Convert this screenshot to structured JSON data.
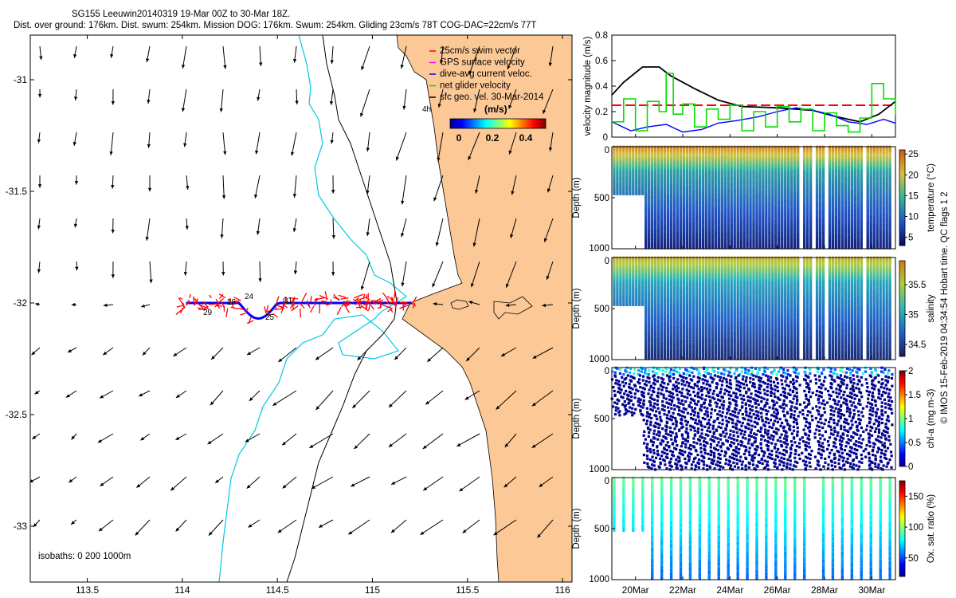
{
  "header": {
    "line1": "SG155 Leeuwin20140319 19-Mar 00Z to 30-Mar 18Z.",
    "line2": "Dist. over ground: 176km. Dist. swum: 254km. Mission DOG: 176km. Swum: 254km. Gliding 23cm/s 78T COG-DAC=22cm/s 77T"
  },
  "colors": {
    "land": "#fcc896",
    "isobath_0": "#000000",
    "isobath_200": "#00c8e6",
    "isobath_1000": "#000000",
    "swim_vector": "#ff0000",
    "gps_surface": "#ff00ff",
    "dive_avg": "#0000ff",
    "net_glider": "#00e000",
    "sfc_geo": "#000000"
  },
  "map": {
    "legend": [
      {
        "label": "25cm/s swim vector",
        "color": "#ff0000"
      },
      {
        "label": "GPS surface velocity",
        "color": "#ff00ff"
      },
      {
        "label": "dive-avg current veloc.",
        "color": "#0000ff"
      },
      {
        "label": "net glider velocity",
        "color": "#00e000"
      },
      {
        "label": "sfc geo. vel. 30-Mar-2014",
        "color": "#000000"
      }
    ],
    "colorbar_title": "(m/s)",
    "colorbar_ticks": [
      "0",
      "0.2",
      "0.4"
    ],
    "isobath_note": "isobaths: 0   200  1000m",
    "day_labels": [
      "29",
      "28",
      "24",
      "25",
      "31",
      "4h"
    ],
    "xlim": [
      113.2,
      116.05
    ],
    "ylim": [
      -33.25,
      -30.8
    ],
    "x_ticks": [
      "113.5",
      "114",
      "114.5",
      "115",
      "115.5",
      "116"
    ],
    "y_ticks": [
      "-31",
      "-31.5",
      "-32",
      "-32.5",
      "-33"
    ]
  },
  "panels": {
    "velocity": {
      "ylabel": "velocity magnitude (m/s)",
      "yticks": [
        "0",
        "0.2",
        "0.4",
        "0.6",
        "0.8"
      ]
    },
    "depth_ylabel": "Depth (m)",
    "depth_ticks": [
      "0",
      "500",
      "1000"
    ],
    "temperature": {
      "cbar_label": "temperature (°C)",
      "cbar_ticks": [
        "5",
        "10",
        "15",
        "20",
        "25"
      ]
    },
    "salinity": {
      "cbar_label": "salinity",
      "cbar_ticks": [
        "34.5",
        "35",
        "35.5"
      ]
    },
    "chla": {
      "cbar_label": "chl-a (mg m-3)",
      "cbar_ticks": [
        "0",
        "0.5",
        "1",
        "1.5",
        "2"
      ]
    },
    "oxygen": {
      "cbar_label": "Ox. sat. ratio (%)",
      "cbar_ticks": [
        "50",
        "100",
        "150"
      ]
    },
    "time_ticks": [
      "20Mar",
      "22Mar",
      "24Mar",
      "26Mar",
      "28Mar",
      "30Mar"
    ]
  },
  "side_note": "© IMOS 15-Feb-2019 04:34:54 Hobart time. QC flags 1  2",
  "chart_data": [
    {
      "type": "line",
      "series": [
        {
          "name": "25cm/s swim vector",
          "x": [
            19.0,
            20.5,
            22,
            24,
            26,
            28,
            29.5,
            31.0
          ],
          "y": [
            0.25,
            0.25,
            0.25,
            0.25,
            0.25,
            0.25,
            0.25,
            0.25
          ]
        },
        {
          "name": "sfc geo. vel. 30-Mar-2014",
          "x": [
            19.0,
            19.5,
            20.3,
            21.0,
            21.5,
            22.5,
            23.5,
            24.5,
            26.0,
            27.5,
            28.5,
            29.5,
            30.3,
            31.0
          ],
          "y": [
            0.33,
            0.43,
            0.55,
            0.55,
            0.48,
            0.38,
            0.29,
            0.24,
            0.23,
            0.21,
            0.16,
            0.12,
            0.18,
            0.28
          ]
        },
        {
          "name": "dive-avg current veloc.",
          "x": [
            19.0,
            19.8,
            20.5,
            21.3,
            22.0,
            22.8,
            23.5,
            24.3,
            25.2,
            26.0,
            26.8,
            27.5,
            28.2,
            29.0,
            29.8,
            30.5,
            31.0
          ],
          "y": [
            0.12,
            0.05,
            0.08,
            0.1,
            0.04,
            0.06,
            0.11,
            0.13,
            0.16,
            0.2,
            0.23,
            0.21,
            0.18,
            0.12,
            0.1,
            0.14,
            0.11
          ]
        },
        {
          "name": "net glider velocity",
          "x": [
            19.0,
            19.5,
            20.0,
            20.5,
            21.0,
            21.3,
            21.6,
            22.0,
            22.5,
            23.0,
            23.5,
            24.0,
            24.5,
            25.0,
            25.5,
            26.0,
            26.5,
            27.0,
            27.5,
            28.0,
            28.5,
            29.0,
            29.5,
            30.0,
            30.5,
            31.0
          ],
          "y": [
            0.12,
            0.3,
            0.05,
            0.28,
            0.2,
            0.5,
            0.18,
            0.26,
            0.08,
            0.22,
            0.14,
            0.25,
            0.05,
            0.2,
            0.08,
            0.24,
            0.12,
            0.22,
            0.05,
            0.19,
            0.09,
            0.04,
            0.15,
            0.42,
            0.3,
            0.17
          ]
        }
      ],
      "xlim": [
        19.0,
        31.0
      ],
      "ylim": [
        0,
        0.8
      ],
      "ylabel": "velocity magnitude (m/s)"
    },
    {
      "type": "scatter",
      "variable": "temperature",
      "ylim": [
        1000,
        0
      ],
      "clim": [
        3,
        26
      ],
      "cbar_ticks": [
        5,
        10,
        15,
        20,
        25
      ],
      "surface_value": 24,
      "mid_value": 13,
      "deep_value": 5
    },
    {
      "type": "scatter",
      "variable": "salinity",
      "ylim": [
        1000,
        0
      ],
      "clim": [
        34.3,
        35.9
      ],
      "cbar_ticks": [
        34.5,
        35,
        35.5
      ],
      "surface_value": 35.7,
      "mid_value": 35.0,
      "deep_value": 34.4
    },
    {
      "type": "scatter",
      "variable": "chl-a",
      "ylim": [
        1000,
        0
      ],
      "clim": [
        0,
        2
      ],
      "cbar_ticks": [
        0,
        0.5,
        1,
        1.5,
        2
      ],
      "surface_value": 0.6,
      "deep_value": 0.0
    },
    {
      "type": "scatter",
      "variable": "oxygen saturation",
      "ylim": [
        1000,
        0
      ],
      "clim": [
        20,
        175
      ],
      "cbar_ticks": [
        50,
        100,
        150
      ],
      "surface_value": 95,
      "deep_value": 55
    }
  ]
}
